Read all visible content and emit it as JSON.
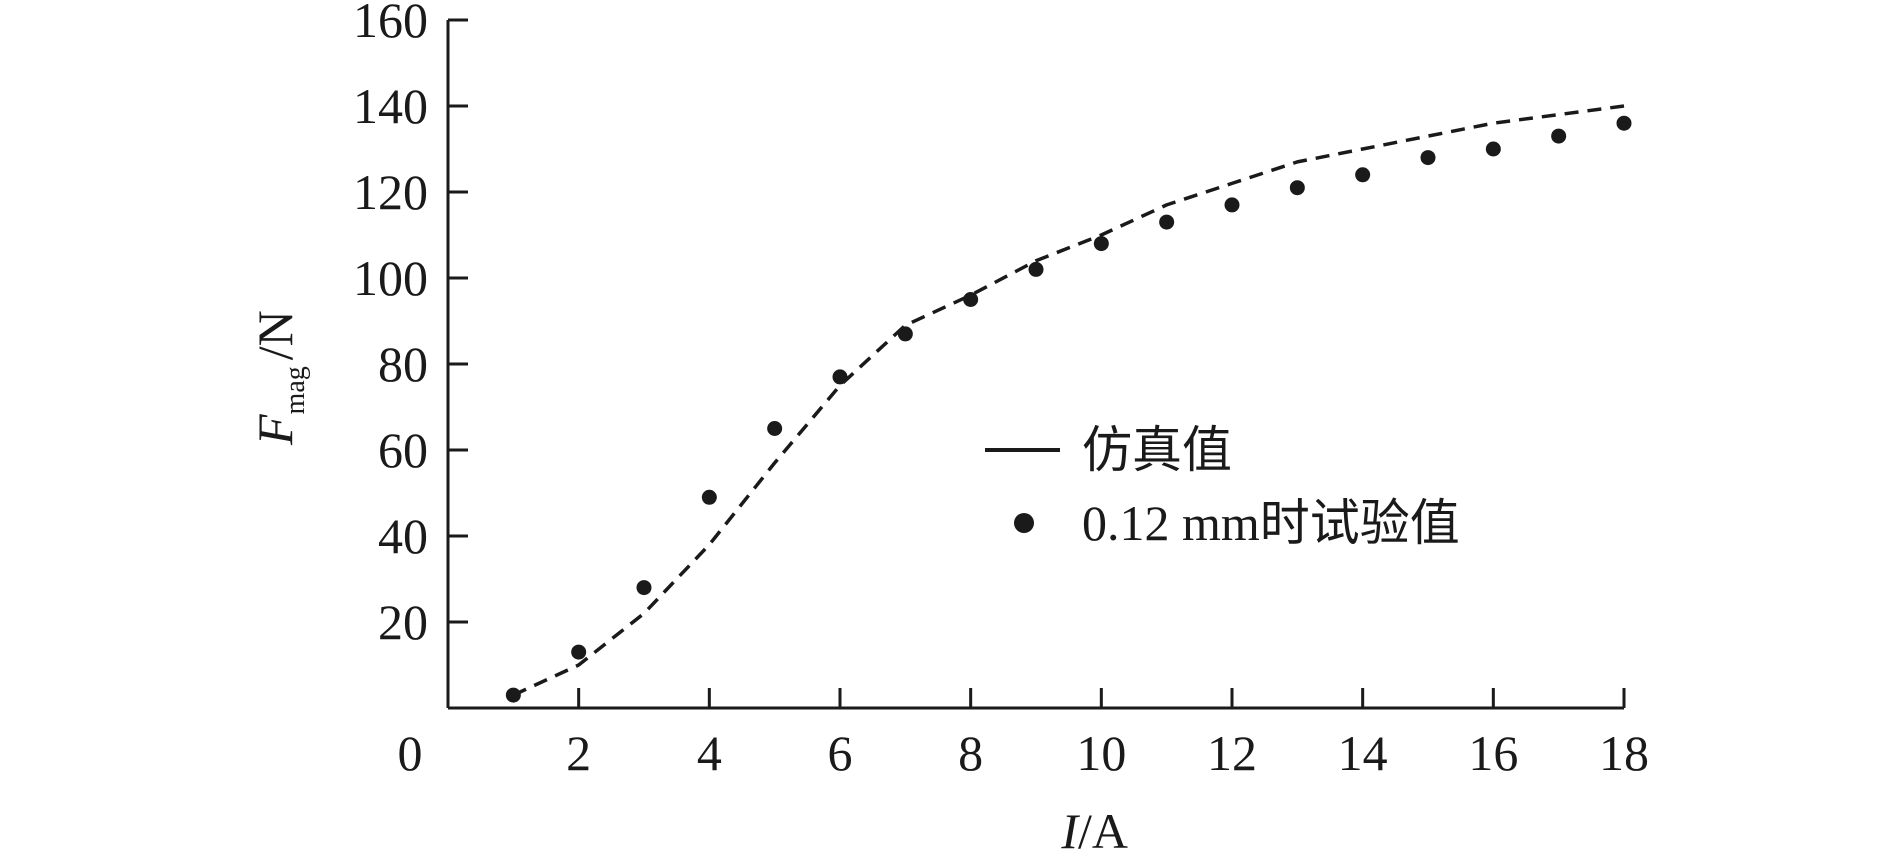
{
  "chart_data": {
    "type": "line",
    "xlabel": {
      "italic": "I",
      "rest": "/A"
    },
    "ylabel": {
      "italic": "F",
      "subscript": "mag",
      "rest": "/N"
    },
    "x_ticks": [
      "0",
      "2",
      "4",
      "6",
      "8",
      "10",
      "12",
      "14",
      "16",
      "18"
    ],
    "y_ticks": [
      "20",
      "40",
      "60",
      "80",
      "100",
      "120",
      "140",
      "160"
    ],
    "xlim": [
      0,
      18
    ],
    "ylim": [
      0,
      160
    ],
    "grid": false,
    "legend_position": "center-right",
    "series": [
      {
        "name": "仿真值",
        "style": "dashed-line",
        "legend_marker": "line",
        "x": [
          1,
          2,
          3,
          4,
          5,
          6,
          7,
          8,
          9,
          10,
          11,
          12,
          13,
          14,
          15,
          16,
          17,
          18
        ],
        "y": [
          3,
          10,
          22,
          38,
          57,
          75,
          89,
          96,
          104,
          110,
          117,
          122,
          127,
          130,
          133,
          136,
          138,
          140
        ]
      },
      {
        "name": "0.12 mm时试验值",
        "style": "markers",
        "legend_marker": "dot",
        "x": [
          1,
          2,
          3,
          4,
          5,
          6,
          7,
          8,
          9,
          10,
          11,
          12,
          13,
          14,
          15,
          16,
          17,
          18
        ],
        "y": [
          3,
          13,
          28,
          49,
          65,
          77,
          87,
          95,
          102,
          108,
          113,
          117,
          121,
          124,
          128,
          130,
          133,
          136
        ]
      }
    ],
    "colors": {
      "ink": "#1a1a1a",
      "background": "#ffffff"
    }
  }
}
